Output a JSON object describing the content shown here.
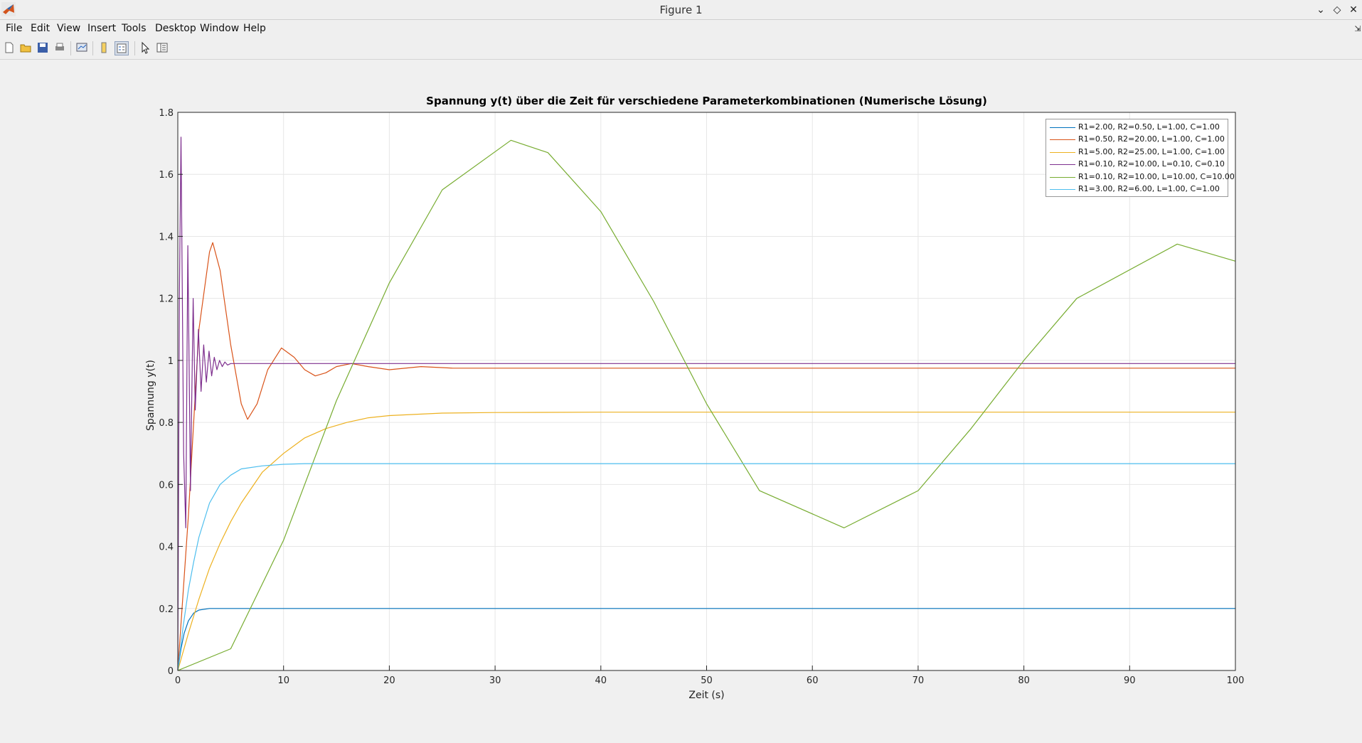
{
  "window": {
    "title": "Figure 1"
  },
  "menu": [
    "File",
    "Edit",
    "View",
    "Insert",
    "Tools",
    "Desktop",
    "Window",
    "Help"
  ],
  "toolbar": {
    "buttons": [
      "new-figure-icon",
      "open-file-icon",
      "save-icon",
      "print-icon",
      "link-plot-icon",
      "colorbar-icon",
      "legend-icon",
      "edit-plot-icon",
      "property-inspector-icon"
    ]
  },
  "chart_data": {
    "type": "line",
    "title": "Spannung y(t) über die Zeit für verschiedene Parameterkombinationen (Numerische Lösung)",
    "xlabel": "Zeit (s)",
    "ylabel": "Spannung y(t)",
    "xlim": [
      0,
      100
    ],
    "ylim": [
      0,
      1.8
    ],
    "xticks": [
      "0",
      "10",
      "20",
      "30",
      "40",
      "50",
      "60",
      "70",
      "80",
      "90",
      "100"
    ],
    "yticks": [
      "0",
      "0.2",
      "0.4",
      "0.6",
      "0.8",
      "1",
      "1.2",
      "1.4",
      "1.6",
      "1.8"
    ],
    "grid": true,
    "legend_position": "top-right",
    "series": [
      {
        "name": "R1=2.00, R2=0.50, L=1.00, C=1.00",
        "color": "#0072bd",
        "x": [
          0,
          0.3,
          0.6,
          1,
          1.5,
          2,
          3,
          5,
          10,
          100
        ],
        "y": [
          0,
          0.07,
          0.12,
          0.16,
          0.185,
          0.195,
          0.2,
          0.2,
          0.2,
          0.2
        ]
      },
      {
        "name": "R1=0.50, R2=20.00, L=1.00, C=1.00",
        "color": "#d95319",
        "x": [
          0,
          1,
          2,
          3,
          3.3,
          4,
          5,
          6,
          6.6,
          7.5,
          8.5,
          9.8,
          11,
          12,
          13,
          14,
          15,
          16.4,
          18,
          20,
          23,
          26,
          30,
          40,
          100
        ],
        "y": [
          0,
          0.5,
          1.1,
          1.35,
          1.38,
          1.29,
          1.05,
          0.86,
          0.81,
          0.86,
          0.97,
          1.04,
          1.01,
          0.97,
          0.95,
          0.96,
          0.98,
          0.99,
          0.98,
          0.97,
          0.98,
          0.975,
          0.975,
          0.975,
          0.975
        ]
      },
      {
        "name": "R1=5.00, R2=25.00, L=1.00, C=1.00",
        "color": "#edb120",
        "x": [
          0,
          1,
          2,
          3,
          4,
          5,
          6,
          8,
          10,
          12,
          14,
          16,
          18,
          20,
          25,
          30,
          40,
          100
        ],
        "y": [
          0,
          0.12,
          0.23,
          0.33,
          0.41,
          0.48,
          0.54,
          0.64,
          0.7,
          0.75,
          0.78,
          0.8,
          0.815,
          0.822,
          0.83,
          0.832,
          0.833,
          0.833
        ]
      },
      {
        "name": "R1=0.10, R2=10.00, L=0.10, C=0.10",
        "color": "#7e2f8e",
        "x": [
          0,
          0.15,
          0.3,
          0.55,
          0.75,
          0.95,
          1.2,
          1.45,
          1.65,
          1.95,
          2.2,
          2.45,
          2.7,
          2.95,
          3.2,
          3.45,
          3.7,
          3.95,
          4.2,
          4.45,
          4.7,
          5,
          6,
          100
        ],
        "y": [
          0,
          1.2,
          1.72,
          0.7,
          0.46,
          1.37,
          0.58,
          1.2,
          0.84,
          1.1,
          0.9,
          1.05,
          0.93,
          1.03,
          0.95,
          1.01,
          0.97,
          1.0,
          0.98,
          0.995,
          0.985,
          0.99,
          0.99,
          0.99
        ]
      },
      {
        "name": "R1=0.10, R2=10.00, L=10.00, C=10.00",
        "color": "#77ac30",
        "x": [
          0,
          5,
          10,
          15,
          20,
          25,
          31.5,
          35,
          40,
          45,
          50,
          55,
          63,
          70,
          75,
          80,
          85,
          94.5,
          100
        ],
        "y": [
          0,
          0.07,
          0.42,
          0.87,
          1.25,
          1.55,
          1.71,
          1.67,
          1.48,
          1.19,
          0.86,
          0.58,
          0.46,
          0.58,
          0.78,
          1.0,
          1.2,
          1.375,
          1.32
        ]
      },
      {
        "name": "R1=3.00, R2=6.00, L=1.00, C=1.00",
        "color": "#4dbeee",
        "x": [
          0,
          0.5,
          1,
          1.5,
          2,
          3,
          4,
          5,
          6,
          8,
          10,
          12,
          15,
          100
        ],
        "y": [
          0,
          0.14,
          0.26,
          0.35,
          0.43,
          0.54,
          0.6,
          0.63,
          0.65,
          0.66,
          0.665,
          0.667,
          0.667,
          0.667
        ]
      }
    ]
  }
}
